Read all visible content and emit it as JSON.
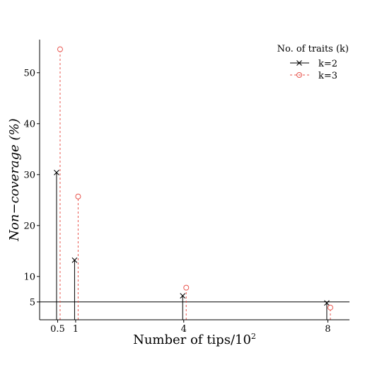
{
  "chart_data": {
    "type": "stem",
    "xlabel": "Number of tips/10",
    "xlabel_superscript": "2",
    "ylabel": "Non−coverage (%)",
    "x": [
      0.5,
      1,
      4,
      8
    ],
    "x_tick_labels": [
      "0.5",
      "1",
      "4",
      "8"
    ],
    "xlim": [
      0,
      8.6
    ],
    "y_ticks": [
      5,
      10,
      20,
      30,
      40,
      50
    ],
    "ylim": [
      1.5,
      56.5
    ],
    "reference_line": 5,
    "legend": {
      "title": "No. of traits (k)",
      "position": "top-right"
    },
    "series": [
      {
        "name": "k=2",
        "values": [
          30.4,
          13.2,
          6.2,
          4.8
        ],
        "color": "#000000",
        "marker": "x",
        "line_style": "solid"
      },
      {
        "name": "k=3",
        "values": [
          54.6,
          25.7,
          7.8,
          3.9
        ],
        "color": "#e8554e",
        "marker": "o",
        "line_style": "dashed"
      }
    ]
  }
}
